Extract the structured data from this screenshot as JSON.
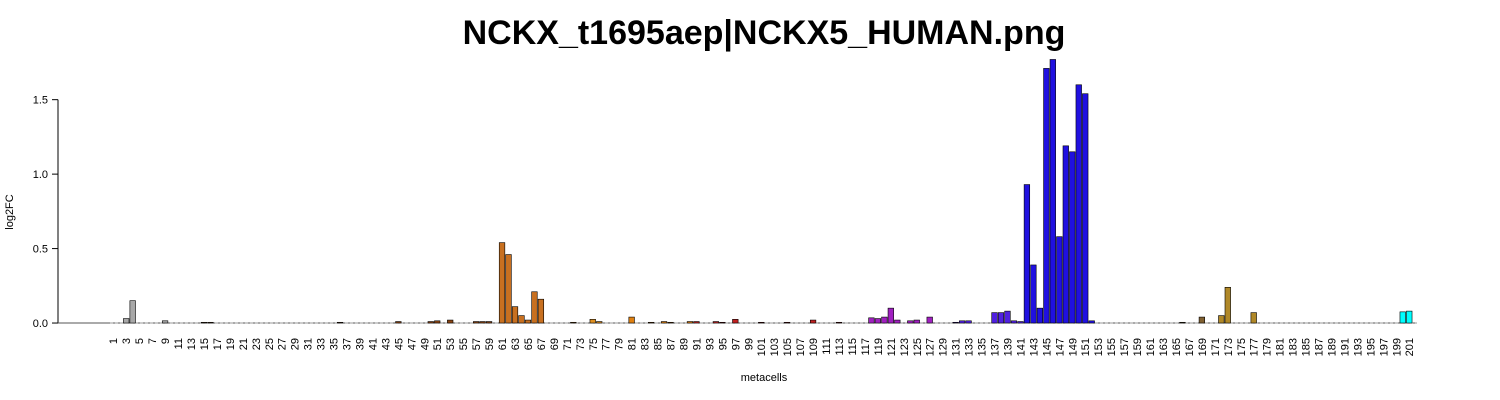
{
  "chart_data": {
    "type": "bar",
    "title": "NCKX_t1695aep|NCKX5_HUMAN.png",
    "x_label": "metacells",
    "y_label": "log2FC",
    "categories": [
      1,
      null,
      3,
      null,
      5,
      null,
      7,
      null,
      9,
      null,
      11,
      null,
      13,
      null,
      15,
      null,
      17,
      null,
      19,
      null,
      21,
      null,
      23,
      null,
      25,
      null,
      27,
      null,
      29,
      null,
      31,
      null,
      33,
      null,
      35,
      null,
      37,
      null,
      39,
      null,
      41,
      null,
      43,
      null,
      45,
      null,
      47,
      null,
      49,
      null,
      51,
      null,
      53,
      null,
      55,
      null,
      57,
      null,
      59,
      null,
      61,
      null,
      63,
      null,
      65,
      null,
      67,
      null,
      69,
      null,
      71,
      null,
      73,
      null,
      75,
      null,
      77,
      null,
      79,
      null,
      81,
      null,
      83,
      null,
      85,
      null,
      87,
      null,
      89,
      null,
      91,
      null,
      93,
      null,
      95,
      null,
      97,
      null,
      99,
      null,
      101,
      null,
      103,
      null,
      105,
      null,
      107,
      null,
      109,
      null,
      111,
      null,
      113,
      null,
      115,
      null,
      117,
      null,
      119,
      null,
      121,
      null,
      123,
      null,
      125,
      null,
      127,
      null,
      129,
      null,
      131,
      null,
      133,
      null,
      135,
      null,
      137,
      null,
      139,
      null,
      141,
      null,
      143,
      null,
      145,
      null,
      147,
      null,
      149,
      null,
      151,
      null,
      153,
      null,
      155,
      null,
      157,
      null,
      159,
      null,
      161,
      null,
      163,
      null,
      165,
      null,
      167,
      null,
      169,
      null,
      171,
      null,
      173,
      null,
      175,
      null,
      177,
      null,
      179,
      null,
      181,
      null,
      183,
      null,
      185,
      null,
      187,
      null,
      189,
      null,
      191,
      null,
      193,
      null,
      195,
      null,
      197,
      null,
      199,
      null,
      201
    ],
    "values": [
      0,
      0,
      0.03,
      0.15,
      0,
      0,
      0,
      0,
      0.015,
      0,
      0,
      0,
      0,
      0,
      0.005,
      0.005,
      0,
      0,
      0,
      0,
      0,
      0,
      0,
      0,
      0,
      0,
      0,
      0,
      0,
      0,
      0,
      0,
      0,
      0,
      0,
      0.005,
      0,
      0,
      0,
      0,
      0,
      0,
      0,
      0,
      0.01,
      0,
      0,
      0,
      0,
      0.01,
      0.015,
      0,
      0.02,
      0,
      0,
      0,
      0.01,
      0.01,
      0.01,
      0,
      0.54,
      0.46,
      0.11,
      0.05,
      0.02,
      0.21,
      0.16,
      0,
      0,
      0,
      0,
      0.005,
      0,
      0,
      0.025,
      0.01,
      0,
      0,
      0,
      0,
      0.04,
      0,
      0,
      0.005,
      0,
      0.01,
      0.005,
      0,
      0,
      0.01,
      0.01,
      0,
      0,
      0.01,
      0.005,
      0,
      0.025,
      0,
      0,
      0,
      0.005,
      0,
      0,
      0,
      0.005,
      0,
      0,
      0,
      0.02,
      0,
      0,
      0,
      0.005,
      0,
      0,
      0,
      0,
      0.035,
      0.03,
      0.04,
      0.1,
      0.02,
      0,
      0.015,
      0.02,
      0,
      0.04,
      0,
      0,
      0,
      0.005,
      0.015,
      0.015,
      0,
      0,
      0,
      0.07,
      0.07,
      0.08,
      0.015,
      0.01,
      0.93,
      0.39,
      0.1,
      1.71,
      1.77,
      0.58,
      1.19,
      1.15,
      1.6,
      1.54,
      0.015,
      0,
      0,
      0,
      0,
      0,
      0,
      0,
      0,
      0,
      0,
      0,
      0,
      0,
      0.005,
      0,
      0,
      0.04,
      0,
      0,
      0.05,
      0.24,
      0,
      0,
      0,
      0.07,
      0,
      0,
      0,
      0,
      0,
      0,
      0,
      0,
      0,
      0,
      0,
      0,
      0,
      0,
      0,
      0,
      0,
      0,
      0,
      0,
      0,
      0,
      0.075,
      0.08
    ],
    "colors": [
      "#a8a8a8",
      "#a8a8a8",
      "#a8a8a8",
      "#a8a8a8",
      "#a8a8a8",
      "#a8a8a8",
      "#a8a8a8",
      "#a8a8a8",
      "#a8a8a8",
      "#a8a8a8",
      "#8b5a2b",
      "#8b5a2b",
      "#8b5a2b",
      "#8b5a2b",
      "#8b5a2b",
      "#8b5a2b",
      "#8b5a2b",
      "#8b5a2b",
      "#8b5a2b",
      "#8b5a2b",
      "#8b5a2b",
      "#8b5a2b",
      "#8b5a2b",
      "#8b5a2b",
      "#8b5a2b",
      "#8b5a2b",
      "#8b5a2b",
      "#8b5a2b",
      "#8b5a2b",
      "#8b5a2b",
      "#8b5a2b",
      "#8b5a2b",
      "#8b5a2b",
      "#8b5a2b",
      "#8b5a2b",
      "#8b5a2b",
      "#8b5a2b",
      "#8b5a2b",
      "#8b5a2b",
      "#8b5a2b",
      "#8b4513",
      "#8b4513",
      "#8b4513",
      "#8b4513",
      "#8b4513",
      "#8b4513",
      "#8b4513",
      "#8b4513",
      "#8b4513",
      "#8b4513",
      "#8b4513",
      "#8b4513",
      "#8b4513",
      "#8b4513",
      "#8b4513",
      "#8b4513",
      "#8b4513",
      "#8b4513",
      "#8b4513",
      "#8b4513",
      "#c87020",
      "#c87020",
      "#c87020",
      "#c87020",
      "#c87020",
      "#c87020",
      "#c87020",
      "#e09020",
      "#e09020",
      "#e09020",
      "#e09020",
      "#e09020",
      "#e09020",
      "#e09020",
      "#e09020",
      "#e09020",
      "#e09020",
      "#e09020",
      "#e09020",
      "#e09020",
      "#e08010",
      "#e08010",
      "#e08010",
      "#e08010",
      "#e08010",
      "#e08010",
      "#e08010",
      "#e08010",
      "#e08010",
      "#e08010",
      "#c02020",
      "#c02020",
      "#c02020",
      "#c02020",
      "#c02020",
      "#c02020",
      "#c02020",
      "#c02020",
      "#c02020",
      "#c02020",
      "#c02020",
      "#c02020",
      "#c02020",
      "#c02020",
      "#c02020",
      "#c02020",
      "#c02020",
      "#c02020",
      "#c02020",
      "#c02020",
      "#c02020",
      "#c02020",
      "#c02020",
      "#c02020",
      "#c02020",
      "#a020c0",
      "#a020c0",
      "#a020c0",
      "#a020c0",
      "#a020c0",
      "#a020c0",
      "#a020c0",
      "#a020c0",
      "#a020c0",
      "#a020c0",
      "#a020c0",
      "#a020c0",
      "#a020c0",
      "#a020c0",
      "#a020c0",
      "#5020e0",
      "#5020e0",
      "#5020e0",
      "#5020e0",
      "#5020e0",
      "#5020e0",
      "#5020e0",
      "#5020e0",
      "#5020e0",
      "#5020e0",
      "#5020e0",
      "#2010e0",
      "#2010e0",
      "#2010e0",
      "#2010e0",
      "#2010e0",
      "#2010e0",
      "#2010e0",
      "#2010e0",
      "#2010e0",
      "#2010e0",
      "#2010e0",
      "#806030",
      "#806030",
      "#806030",
      "#806030",
      "#806030",
      "#806030",
      "#806030",
      "#806030",
      "#806030",
      "#806030",
      "#806030",
      "#806030",
      "#806030",
      "#806030",
      "#806030",
      "#806030",
      "#806030",
      "#806030",
      "#b08828",
      "#b08828",
      "#b08828",
      "#b08828",
      "#b08828",
      "#b08828",
      "#b08828",
      "#b08828",
      "#20d0d0",
      "#20d0d0",
      "#20d0d0",
      "#20d0d0",
      "#20d0d0",
      "#20d0d0",
      "#20d0d0",
      "#20d0d0",
      "#20d0d0",
      "#20d0d0",
      "#20d0d0",
      "#20d0d0",
      "#20d0d0",
      "#20d0d0",
      "#20d0d0",
      "#20d0d0",
      "#20d0d0",
      "#20d0d0",
      "#20d0d0",
      "#20d0d0",
      "#20d0d0",
      "#00ffff",
      "#00ffff"
    ],
    "ylim": [
      -0.03,
      1.8
    ],
    "yticks": [
      {
        "value": 0,
        "label": "0.0"
      },
      0.5,
      {
        "value": 1,
        "label": "1.0"
      },
      1.5
    ]
  }
}
